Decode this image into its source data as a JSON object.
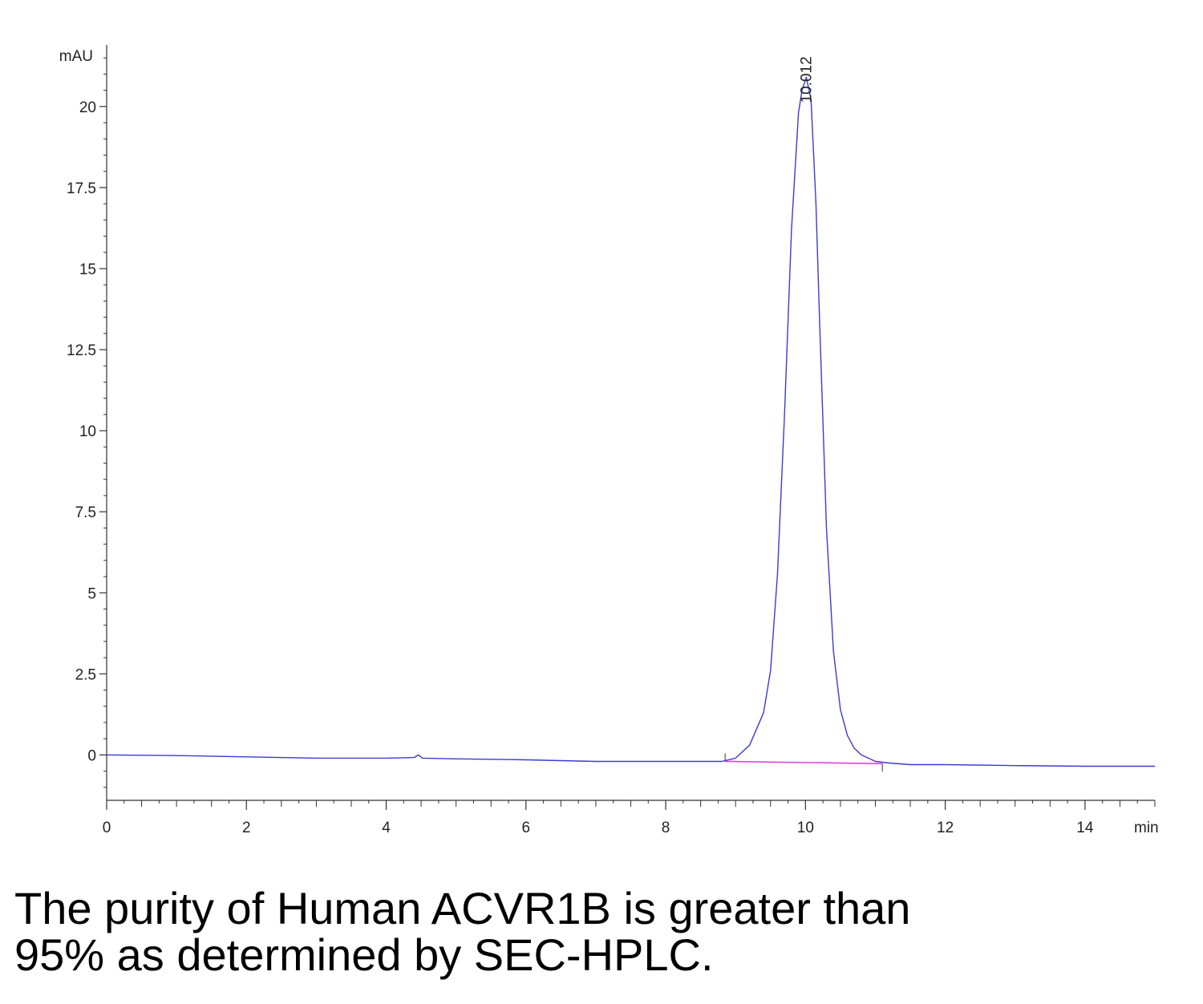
{
  "chart_data": {
    "type": "line",
    "ylabel": "mAU",
    "xlabel": "min",
    "xlim": [
      0,
      15
    ],
    "ylim": [
      -1.4,
      21.9
    ],
    "x_ticks": [
      0,
      2,
      4,
      6,
      8,
      10,
      12,
      14
    ],
    "y_ticks": [
      0,
      2.5,
      5,
      7.5,
      10,
      12.5,
      15,
      17.5,
      20
    ],
    "x_tick_labels": [
      "0",
      "2",
      "4",
      "6",
      "8",
      "10",
      "12",
      "14"
    ],
    "y_tick_labels": [
      "0",
      "2.5",
      "5",
      "7.5",
      "10",
      "12.5",
      "15",
      "17.5",
      "20"
    ],
    "grid": false,
    "series": [
      {
        "color": "#3a3ad6",
        "x": [
          0,
          1,
          2,
          3,
          4,
          4.4,
          4.46,
          4.52,
          5,
          6,
          7,
          8,
          8.5,
          8.8,
          9.0,
          9.2,
          9.4,
          9.5,
          9.6,
          9.7,
          9.8,
          9.9,
          9.95,
          10.012,
          10.08,
          10.15,
          10.2,
          10.3,
          10.4,
          10.5,
          10.6,
          10.7,
          10.8,
          10.9,
          11.0,
          11.2,
          11.5,
          12,
          13,
          14,
          15
        ],
        "y": [
          0.0,
          -0.02,
          -0.06,
          -0.1,
          -0.1,
          -0.08,
          0.0,
          -0.1,
          -0.12,
          -0.15,
          -0.2,
          -0.2,
          -0.2,
          -0.2,
          -0.1,
          0.3,
          1.3,
          2.6,
          5.6,
          10.5,
          16.2,
          19.8,
          20.5,
          20.9,
          20.2,
          17.0,
          13.5,
          7.0,
          3.2,
          1.4,
          0.6,
          0.2,
          0.0,
          -0.1,
          -0.2,
          -0.25,
          -0.3,
          -0.3,
          -0.33,
          -0.35,
          -0.35
        ]
      }
    ],
    "baseline": {
      "color": "#e040e0",
      "x": [
        8.85,
        11.1
      ],
      "y": [
        -0.2,
        -0.27
      ]
    },
    "peak_label": {
      "text": "10.012",
      "x": 10.012,
      "y": 20.9
    },
    "integration_marks_x": [
      8.85,
      11.1
    ]
  },
  "caption": {
    "line1": "The purity of Human ACVR1B is greater than",
    "line2": "95% as determined by SEC-HPLC."
  }
}
